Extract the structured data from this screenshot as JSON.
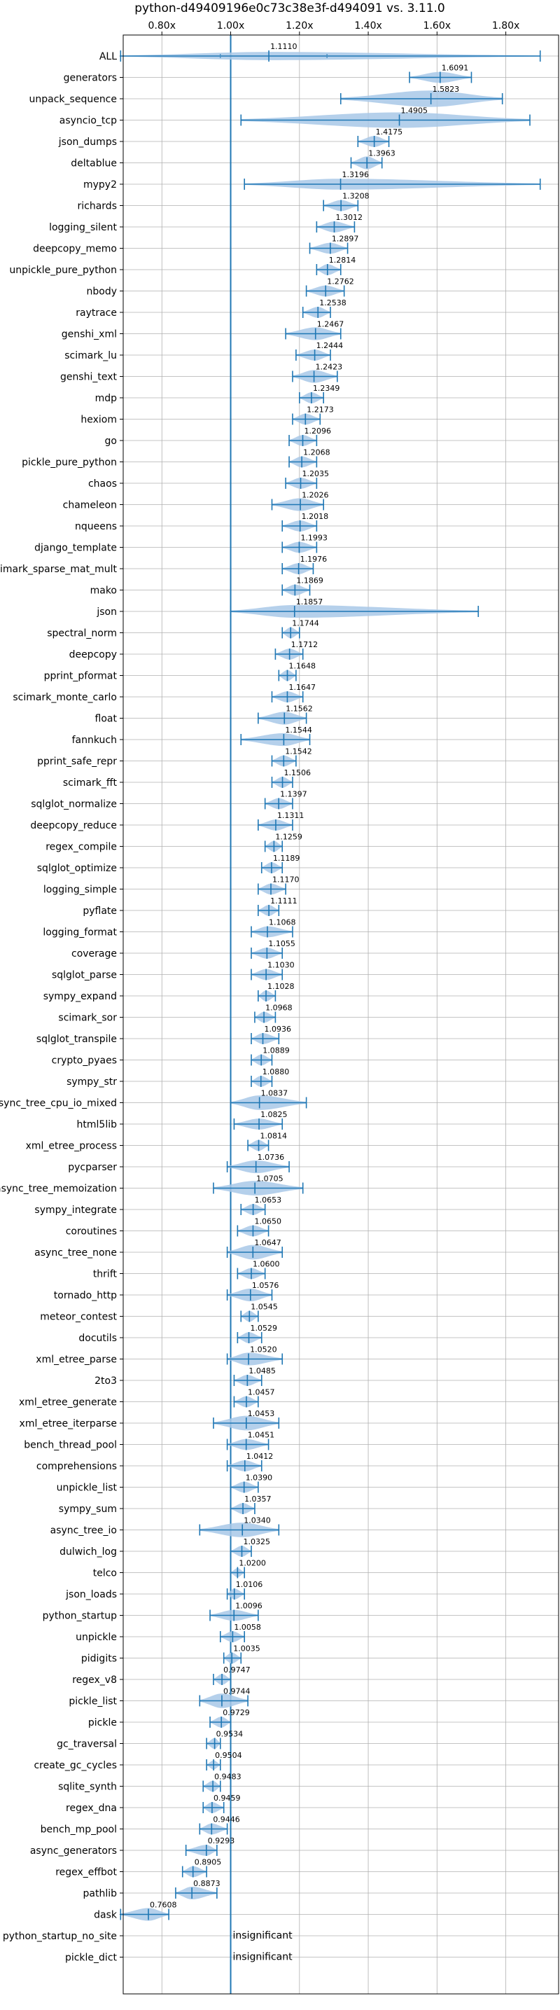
{
  "chart_data": {
    "type": "violin",
    "title": "python-d49409196e0c73c38e3f-d494091 vs. 3.11.0",
    "x_ticks": [
      {
        "value": 0.8,
        "label": "0.80x"
      },
      {
        "value": 1.0,
        "label": "1.00x"
      },
      {
        "value": 1.2,
        "label": "1.20x"
      },
      {
        "value": 1.4,
        "label": "1.40x"
      },
      {
        "value": 1.6,
        "label": "1.60x"
      },
      {
        "value": 1.8,
        "label": "1.80x"
      }
    ],
    "xlim": [
      0.6875,
      1.9535
    ],
    "reference_line": 1.0,
    "colors": {
      "violin": "#a8c8e8",
      "line": "#1f77b4",
      "grid": "#b0b0b0"
    },
    "benchmarks": [
      {
        "name": "ALL",
        "value": 1.111,
        "label": "1.1110",
        "min": 0.68,
        "max": 1.9,
        "w": 0.45,
        "q1": 0.97,
        "q3": 1.28
      },
      {
        "name": "generators",
        "value": 1.6091,
        "label": "1.6091",
        "min": 1.52,
        "max": 1.7,
        "w": 0.6
      },
      {
        "name": "unpack_sequence",
        "value": 1.5823,
        "label": "1.5823",
        "min": 1.32,
        "max": 1.79,
        "w": 0.9
      },
      {
        "name": "asyncio_tcp",
        "value": 1.4905,
        "label": "1.4905",
        "min": 1.03,
        "max": 1.87,
        "w": 0.85
      },
      {
        "name": "json_dumps",
        "value": 1.4175,
        "label": "1.4175",
        "min": 1.37,
        "max": 1.46,
        "w": 0.6
      },
      {
        "name": "deltablue",
        "value": 1.3963,
        "label": "1.3963",
        "min": 1.35,
        "max": 1.44,
        "w": 0.7
      },
      {
        "name": "mypy2",
        "value": 1.3196,
        "label": "1.3196",
        "min": 1.04,
        "max": 1.9,
        "w": 0.6
      },
      {
        "name": "richards",
        "value": 1.3208,
        "label": "1.3208",
        "min": 1.27,
        "max": 1.37,
        "w": 0.6
      },
      {
        "name": "logging_silent",
        "value": 1.3012,
        "label": "1.3012",
        "min": 1.25,
        "max": 1.36,
        "w": 0.6
      },
      {
        "name": "deepcopy_memo",
        "value": 1.2897,
        "label": "1.2897",
        "min": 1.23,
        "max": 1.34,
        "w": 0.6
      },
      {
        "name": "unpickle_pure_python",
        "value": 1.2814,
        "label": "1.2814",
        "min": 1.25,
        "max": 1.32,
        "w": 0.6
      },
      {
        "name": "nbody",
        "value": 1.2762,
        "label": "1.2762",
        "min": 1.22,
        "max": 1.33,
        "w": 0.6
      },
      {
        "name": "raytrace",
        "value": 1.2538,
        "label": "1.2538",
        "min": 1.21,
        "max": 1.29,
        "w": 0.6
      },
      {
        "name": "genshi_xml",
        "value": 1.2467,
        "label": "1.2467",
        "min": 1.16,
        "max": 1.32,
        "w": 0.7
      },
      {
        "name": "scimark_lu",
        "value": 1.2444,
        "label": "1.2444",
        "min": 1.19,
        "max": 1.29,
        "w": 0.6
      },
      {
        "name": "genshi_text",
        "value": 1.2423,
        "label": "1.2423",
        "min": 1.18,
        "max": 1.31,
        "w": 0.7
      },
      {
        "name": "mdp",
        "value": 1.2349,
        "label": "1.2349",
        "min": 1.2,
        "max": 1.27,
        "w": 0.6
      },
      {
        "name": "hexiom",
        "value": 1.2173,
        "label": "1.2173",
        "min": 1.18,
        "max": 1.26,
        "w": 0.6
      },
      {
        "name": "go",
        "value": 1.2096,
        "label": "1.2096",
        "min": 1.17,
        "max": 1.25,
        "w": 0.6
      },
      {
        "name": "pickle_pure_python",
        "value": 1.2068,
        "label": "1.2068",
        "min": 1.17,
        "max": 1.25,
        "w": 0.6
      },
      {
        "name": "chaos",
        "value": 1.2035,
        "label": "1.2035",
        "min": 1.16,
        "max": 1.25,
        "w": 0.6
      },
      {
        "name": "chameleon",
        "value": 1.2026,
        "label": "1.2026",
        "min": 1.12,
        "max": 1.27,
        "w": 0.7
      },
      {
        "name": "nqueens",
        "value": 1.2018,
        "label": "1.2018",
        "min": 1.15,
        "max": 1.25,
        "w": 0.6
      },
      {
        "name": "django_template",
        "value": 1.1993,
        "label": "1.1993",
        "min": 1.15,
        "max": 1.25,
        "w": 0.6
      },
      {
        "name": "scimark_sparse_mat_mult",
        "value": 1.1976,
        "label": "1.1976",
        "min": 1.15,
        "max": 1.24,
        "w": 0.6
      },
      {
        "name": "mako",
        "value": 1.1869,
        "label": "1.1869",
        "min": 1.15,
        "max": 1.23,
        "w": 0.6
      },
      {
        "name": "json",
        "value": 1.1857,
        "label": "1.1857",
        "min": 1.0,
        "max": 1.72,
        "w": 0.7
      },
      {
        "name": "spectral_norm",
        "value": 1.1744,
        "label": "1.1744",
        "min": 1.15,
        "max": 1.2,
        "w": 0.6
      },
      {
        "name": "deepcopy",
        "value": 1.1712,
        "label": "1.1712",
        "min": 1.13,
        "max": 1.21,
        "w": 0.6
      },
      {
        "name": "pprint_pformat",
        "value": 1.1648,
        "label": "1.1648",
        "min": 1.14,
        "max": 1.19,
        "w": 0.6
      },
      {
        "name": "scimark_monte_carlo",
        "value": 1.1647,
        "label": "1.1647",
        "min": 1.12,
        "max": 1.21,
        "w": 0.6
      },
      {
        "name": "float",
        "value": 1.1562,
        "label": "1.1562",
        "min": 1.08,
        "max": 1.22,
        "w": 0.7
      },
      {
        "name": "fannkuch",
        "value": 1.1544,
        "label": "1.1544",
        "min": 1.03,
        "max": 1.23,
        "w": 0.7
      },
      {
        "name": "pprint_safe_repr",
        "value": 1.1542,
        "label": "1.1542",
        "min": 1.12,
        "max": 1.19,
        "w": 0.6
      },
      {
        "name": "scimark_fft",
        "value": 1.1506,
        "label": "1.1506",
        "min": 1.12,
        "max": 1.18,
        "w": 0.6
      },
      {
        "name": "sqlglot_normalize",
        "value": 1.1397,
        "label": "1.1397",
        "min": 1.1,
        "max": 1.18,
        "w": 0.6
      },
      {
        "name": "deepcopy_reduce",
        "value": 1.1311,
        "label": "1.1311",
        "min": 1.08,
        "max": 1.18,
        "w": 0.6
      },
      {
        "name": "regex_compile",
        "value": 1.1259,
        "label": "1.1259",
        "min": 1.1,
        "max": 1.15,
        "w": 0.6
      },
      {
        "name": "sqlglot_optimize",
        "value": 1.1189,
        "label": "1.1189",
        "min": 1.09,
        "max": 1.15,
        "w": 0.6
      },
      {
        "name": "logging_simple",
        "value": 1.117,
        "label": "1.1170",
        "min": 1.08,
        "max": 1.16,
        "w": 0.6
      },
      {
        "name": "pyflate",
        "value": 1.1111,
        "label": "1.1111",
        "min": 1.08,
        "max": 1.14,
        "w": 0.6
      },
      {
        "name": "logging_format",
        "value": 1.1068,
        "label": "1.1068",
        "min": 1.06,
        "max": 1.18,
        "w": 0.6
      },
      {
        "name": "coverage",
        "value": 1.1055,
        "label": "1.1055",
        "min": 1.06,
        "max": 1.15,
        "w": 0.6
      },
      {
        "name": "sqlglot_parse",
        "value": 1.103,
        "label": "1.1030",
        "min": 1.06,
        "max": 1.15,
        "w": 0.6
      },
      {
        "name": "sympy_expand",
        "value": 1.1028,
        "label": "1.1028",
        "min": 1.08,
        "max": 1.13,
        "w": 0.6
      },
      {
        "name": "scimark_sor",
        "value": 1.0968,
        "label": "1.0968",
        "min": 1.07,
        "max": 1.13,
        "w": 0.6
      },
      {
        "name": "sqlglot_transpile",
        "value": 1.0936,
        "label": "1.0936",
        "min": 1.06,
        "max": 1.14,
        "w": 0.6
      },
      {
        "name": "crypto_pyaes",
        "value": 1.0889,
        "label": "1.0889",
        "min": 1.06,
        "max": 1.12,
        "w": 0.6
      },
      {
        "name": "sympy_str",
        "value": 1.088,
        "label": "1.0880",
        "min": 1.06,
        "max": 1.12,
        "w": 0.6
      },
      {
        "name": "async_tree_cpu_io_mixed",
        "value": 1.0837,
        "label": "1.0837",
        "min": 1.0,
        "max": 1.22,
        "w": 0.8
      },
      {
        "name": "html5lib",
        "value": 1.0825,
        "label": "1.0825",
        "min": 1.01,
        "max": 1.15,
        "w": 0.6
      },
      {
        "name": "xml_etree_process",
        "value": 1.0814,
        "label": "1.0814",
        "min": 1.05,
        "max": 1.11,
        "w": 0.6
      },
      {
        "name": "pycparser",
        "value": 1.0736,
        "label": "1.0736",
        "min": 0.99,
        "max": 1.17,
        "w": 0.7
      },
      {
        "name": "async_tree_memoization",
        "value": 1.0705,
        "label": "1.0705",
        "min": 0.95,
        "max": 1.21,
        "w": 0.8
      },
      {
        "name": "sympy_integrate",
        "value": 1.0653,
        "label": "1.0653",
        "min": 1.03,
        "max": 1.1,
        "w": 0.6
      },
      {
        "name": "coroutines",
        "value": 1.065,
        "label": "1.0650",
        "min": 1.02,
        "max": 1.11,
        "w": 0.6
      },
      {
        "name": "async_tree_none",
        "value": 1.0647,
        "label": "1.0647",
        "min": 0.99,
        "max": 1.15,
        "w": 0.8
      },
      {
        "name": "thrift",
        "value": 1.06,
        "label": "1.0600",
        "min": 1.02,
        "max": 1.1,
        "w": 0.6
      },
      {
        "name": "tornado_http",
        "value": 1.0576,
        "label": "1.0576",
        "min": 0.99,
        "max": 1.12,
        "w": 0.7
      },
      {
        "name": "meteor_contest",
        "value": 1.0545,
        "label": "1.0545",
        "min": 1.03,
        "max": 1.08,
        "w": 0.6
      },
      {
        "name": "docutils",
        "value": 1.0529,
        "label": "1.0529",
        "min": 1.02,
        "max": 1.09,
        "w": 0.6
      },
      {
        "name": "xml_etree_parse",
        "value": 1.052,
        "label": "1.0520",
        "min": 0.99,
        "max": 1.15,
        "w": 0.7
      },
      {
        "name": "2to3",
        "value": 1.0485,
        "label": "1.0485",
        "min": 1.01,
        "max": 1.09,
        "w": 0.6
      },
      {
        "name": "xml_etree_generate",
        "value": 1.0457,
        "label": "1.0457",
        "min": 1.01,
        "max": 1.08,
        "w": 0.6
      },
      {
        "name": "xml_etree_iterparse",
        "value": 1.0453,
        "label": "1.0453",
        "min": 0.95,
        "max": 1.14,
        "w": 0.8
      },
      {
        "name": "bench_thread_pool",
        "value": 1.0451,
        "label": "1.0451",
        "min": 0.99,
        "max": 1.11,
        "w": 0.6
      },
      {
        "name": "comprehensions",
        "value": 1.0412,
        "label": "1.0412",
        "min": 0.99,
        "max": 1.09,
        "w": 0.6
      },
      {
        "name": "unpickle_list",
        "value": 1.039,
        "label": "1.0390",
        "min": 1.0,
        "max": 1.08,
        "w": 0.6
      },
      {
        "name": "sympy_sum",
        "value": 1.0357,
        "label": "1.0357",
        "min": 1.0,
        "max": 1.07,
        "w": 0.6
      },
      {
        "name": "async_tree_io",
        "value": 1.034,
        "label": "1.0340",
        "min": 0.91,
        "max": 1.14,
        "w": 0.8
      },
      {
        "name": "dulwich_log",
        "value": 1.0325,
        "label": "1.0325",
        "min": 1.0,
        "max": 1.06,
        "w": 0.6
      },
      {
        "name": "telco",
        "value": 1.02,
        "label": "1.0200",
        "min": 1.0,
        "max": 1.04,
        "w": 0.5
      },
      {
        "name": "json_loads",
        "value": 1.0106,
        "label": "1.0106",
        "min": 0.99,
        "max": 1.04,
        "w": 0.6
      },
      {
        "name": "python_startup",
        "value": 1.0096,
        "label": "1.0096",
        "min": 0.94,
        "max": 1.08,
        "w": 0.6
      },
      {
        "name": "unpickle",
        "value": 1.0058,
        "label": "1.0058",
        "min": 0.97,
        "max": 1.04,
        "w": 0.6
      },
      {
        "name": "pidigits",
        "value": 1.0035,
        "label": "1.0035",
        "min": 0.98,
        "max": 1.03,
        "w": 0.6
      },
      {
        "name": "regex_v8",
        "value": 0.9747,
        "label": "0.9747",
        "min": 0.95,
        "max": 1.0,
        "w": 0.6
      },
      {
        "name": "pickle_list",
        "value": 0.9744,
        "label": "0.9744",
        "min": 0.91,
        "max": 1.05,
        "w": 0.8
      },
      {
        "name": "pickle",
        "value": 0.9729,
        "label": "0.9729",
        "min": 0.94,
        "max": 1.0,
        "w": 0.6
      },
      {
        "name": "gc_traversal",
        "value": 0.9534,
        "label": "0.9534",
        "min": 0.93,
        "max": 0.97,
        "w": 0.6
      },
      {
        "name": "create_gc_cycles",
        "value": 0.9504,
        "label": "0.9504",
        "min": 0.93,
        "max": 0.97,
        "w": 0.5
      },
      {
        "name": "sqlite_synth",
        "value": 0.9483,
        "label": "0.9483",
        "min": 0.92,
        "max": 0.97,
        "w": 0.6
      },
      {
        "name": "regex_dna",
        "value": 0.9459,
        "label": "0.9459",
        "min": 0.92,
        "max": 0.98,
        "w": 0.6
      },
      {
        "name": "bench_mp_pool",
        "value": 0.9446,
        "label": "0.9446",
        "min": 0.91,
        "max": 0.99,
        "w": 0.6
      },
      {
        "name": "async_generators",
        "value": 0.9293,
        "label": "0.9293",
        "min": 0.87,
        "max": 0.96,
        "w": 0.6
      },
      {
        "name": "regex_effbot",
        "value": 0.8905,
        "label": "0.8905",
        "min": 0.86,
        "max": 0.93,
        "w": 0.6
      },
      {
        "name": "pathlib",
        "value": 0.8873,
        "label": "0.8873",
        "min": 0.84,
        "max": 0.96,
        "w": 0.7
      },
      {
        "name": "dask",
        "value": 0.7608,
        "label": "0.7608",
        "min": 0.68,
        "max": 0.82,
        "w": 0.7
      },
      {
        "name": "python_startup_no_site",
        "value": null,
        "label": "insignificant"
      },
      {
        "name": "pickle_dict",
        "value": null,
        "label": "insignificant"
      }
    ]
  }
}
